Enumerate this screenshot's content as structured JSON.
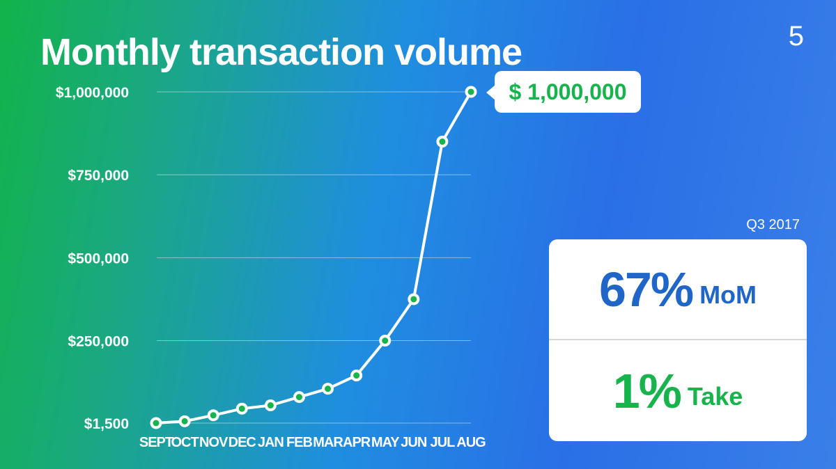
{
  "slide": {
    "title": "Monthly transaction volume",
    "page_number": "5"
  },
  "callout": {
    "label": "$ 1,000,000"
  },
  "stats": {
    "period": "Q3 2017",
    "growth_value": "67%",
    "growth_label": "MoM",
    "take_value": "1%",
    "take_label": "Take"
  },
  "colors": {
    "accent_green": "#17b34d",
    "accent_blue": "#1f66c8",
    "line": "#ffffff"
  },
  "chart_data": {
    "type": "line",
    "title": "Monthly transaction volume",
    "categories": [
      "SEPT",
      "OCT",
      "NOV",
      "DEC",
      "JAN",
      "FEB",
      "MAR",
      "APR",
      "MAY",
      "JUN",
      "JUL",
      "AUG"
    ],
    "values": [
      1500,
      7000,
      25000,
      45000,
      55000,
      80000,
      105000,
      145000,
      250000,
      375000,
      850000,
      1000000
    ],
    "y_ticks": [
      {
        "value": 1500,
        "label": "$1,500"
      },
      {
        "value": 250000,
        "label": "$250,000"
      },
      {
        "value": 500000,
        "label": "$500,000"
      },
      {
        "value": 750000,
        "label": "$750,000"
      },
      {
        "value": 1000000,
        "label": "$1,000,000"
      }
    ],
    "ylim": [
      1500,
      1000000
    ],
    "grid": true,
    "annotation": "$ 1,000,000"
  }
}
